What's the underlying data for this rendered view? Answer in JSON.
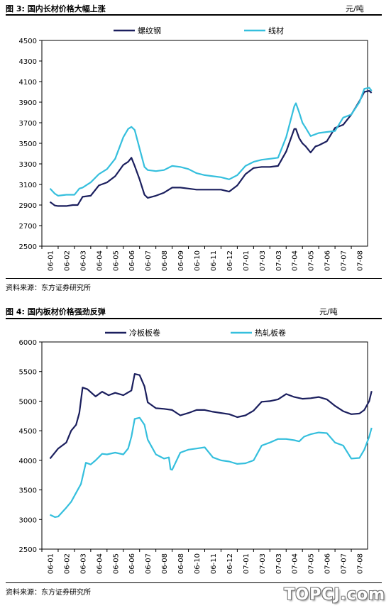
{
  "watermark": "TOPCJ.com",
  "chart_data": [
    {
      "type": "line",
      "title": "图 3:  国内长材价格大幅上涨",
      "unit": "元/吨",
      "source": "资料来源：东方证券研究所",
      "ylim": [
        2500,
        4500
      ],
      "yticks": [
        2500,
        2700,
        2900,
        3100,
        3300,
        3500,
        3700,
        3900,
        4100,
        4300,
        4500
      ],
      "categories": [
        "06-01",
        "06-02",
        "06-03",
        "06-04",
        "06-05",
        "06-06",
        "06-07",
        "06-08",
        "06-09",
        "06-10",
        "06-11",
        "06-12",
        "07-01",
        "07-03",
        "07-03",
        "07-04",
        "07-05",
        "07-06",
        "07-07",
        "07-08"
      ],
      "legend_position": "top",
      "series": [
        {
          "name": "螺纹钢",
          "color": "#1b1f5e",
          "x": [
            0,
            0.3,
            0.5,
            1,
            1.4,
            1.7,
            2,
            2.5,
            3,
            3.5,
            4,
            4.5,
            4.8,
            5,
            5.2,
            5.5,
            5.8,
            6,
            6.5,
            7,
            7.5,
            8,
            8.5,
            9,
            9.5,
            10,
            10.5,
            11,
            11.5,
            12,
            12.5,
            13,
            13.5,
            14,
            14.5,
            15,
            15.1,
            15.3,
            15.5,
            15.7,
            16,
            16.3,
            16.5,
            17,
            17.5,
            18,
            18.5,
            19,
            19.3,
            19.6,
            19.75
          ],
          "values": [
            2930,
            2895,
            2890,
            2890,
            2900,
            2900,
            2980,
            2990,
            3090,
            3120,
            3180,
            3290,
            3320,
            3360,
            3280,
            3150,
            3000,
            2970,
            2990,
            3020,
            3070,
            3070,
            3060,
            3050,
            3050,
            3050,
            3050,
            3030,
            3090,
            3200,
            3260,
            3270,
            3270,
            3280,
            3420,
            3640,
            3640,
            3550,
            3500,
            3470,
            3410,
            3470,
            3480,
            3520,
            3650,
            3680,
            3780,
            3910,
            4000,
            4010,
            3990
          ]
        },
        {
          "name": "线材",
          "color": "#35bfdd",
          "x": [
            0,
            0.3,
            0.5,
            1,
            1.5,
            1.8,
            2,
            2.5,
            3,
            3.5,
            4,
            4.5,
            4.8,
            5,
            5.2,
            5.5,
            5.8,
            6,
            6.5,
            7,
            7.5,
            8,
            8.5,
            9,
            9.5,
            10,
            10.5,
            11,
            11.5,
            12,
            12.5,
            13,
            13.5,
            14,
            14.5,
            15,
            15.1,
            15.3,
            15.5,
            15.7,
            16,
            16.5,
            17,
            17.5,
            18,
            18.5,
            19,
            19.3,
            19.6,
            19.75
          ],
          "values": [
            3060,
            3010,
            2990,
            3000,
            3000,
            3060,
            3070,
            3120,
            3200,
            3250,
            3350,
            3560,
            3640,
            3660,
            3630,
            3450,
            3270,
            3240,
            3230,
            3240,
            3280,
            3270,
            3250,
            3210,
            3190,
            3180,
            3170,
            3150,
            3190,
            3280,
            3320,
            3340,
            3350,
            3360,
            3560,
            3860,
            3890,
            3800,
            3700,
            3650,
            3570,
            3600,
            3610,
            3620,
            3750,
            3780,
            3900,
            4030,
            4040,
            4010
          ]
        }
      ]
    },
    {
      "type": "line",
      "title": "图 4:  国内板材价格强劲反弹",
      "unit": "元/吨",
      "source": "资料来源：东方证券研究所",
      "ylim": [
        2500,
        6000
      ],
      "yticks": [
        2500,
        3000,
        3500,
        4000,
        4500,
        5000,
        5500,
        6000
      ],
      "categories": [
        "06-01",
        "06-02",
        "06-03",
        "06-04",
        "06-05",
        "06-06",
        "06-07",
        "06-08",
        "06-08",
        "06-10",
        "06-11",
        "06-12",
        "07-01",
        "07-03",
        "07-03",
        "07-04",
        "07-05",
        "07-06",
        "07-07",
        "07-08"
      ],
      "legend_position": "top",
      "series": [
        {
          "name": "冷板板卷",
          "color": "#1b1f5e",
          "x": [
            0,
            0.5,
            1,
            1.3,
            1.6,
            1.8,
            2,
            2.3,
            2.8,
            3.2,
            3.6,
            4,
            4.5,
            5,
            5.2,
            5.5,
            5.8,
            6,
            6.5,
            7,
            7.5,
            8,
            8.5,
            9,
            9.5,
            10,
            10.5,
            11,
            11.5,
            12,
            12.5,
            13,
            13.5,
            14,
            14.5,
            15,
            15.5,
            16,
            16.5,
            17,
            17.5,
            18,
            18.5,
            19,
            19.3,
            19.6,
            19.75
          ],
          "values": [
            4030,
            4200,
            4300,
            4500,
            4600,
            4800,
            5230,
            5200,
            5080,
            5160,
            5100,
            5140,
            5100,
            5180,
            5460,
            5440,
            5250,
            4980,
            4880,
            4870,
            4850,
            4760,
            4800,
            4850,
            4850,
            4820,
            4800,
            4780,
            4730,
            4760,
            4840,
            4990,
            5000,
            5030,
            5120,
            5070,
            5040,
            5050,
            5070,
            5030,
            4920,
            4830,
            4780,
            4790,
            4850,
            5000,
            5170
          ]
        },
        {
          "name": "热轧板卷",
          "color": "#35bfdd",
          "x": [
            0,
            0.3,
            0.5,
            1,
            1.3,
            1.6,
            1.9,
            2.2,
            2.5,
            2.8,
            3.2,
            3.5,
            4,
            4.5,
            4.8,
            5,
            5.2,
            5.5,
            5.8,
            6,
            6.5,
            7,
            7.3,
            7.4,
            7.5,
            8,
            8.5,
            9,
            9.5,
            10,
            10.5,
            11,
            11.5,
            12,
            12.5,
            13,
            13.5,
            14,
            14.5,
            15,
            15.3,
            15.6,
            16,
            16.5,
            17,
            17.5,
            18,
            18.5,
            19,
            19.3,
            19.6,
            19.75
          ],
          "values": [
            3080,
            3040,
            3050,
            3200,
            3300,
            3450,
            3600,
            3960,
            3930,
            4000,
            4110,
            4100,
            4130,
            4100,
            4200,
            4400,
            4700,
            4720,
            4600,
            4350,
            4100,
            4030,
            4050,
            3850,
            3840,
            4130,
            4180,
            4200,
            4220,
            4050,
            4000,
            3980,
            3940,
            3950,
            4000,
            4250,
            4300,
            4360,
            4360,
            4340,
            4320,
            4400,
            4440,
            4470,
            4460,
            4300,
            4250,
            4030,
            4040,
            4180,
            4400,
            4550
          ]
        }
      ]
    }
  ]
}
